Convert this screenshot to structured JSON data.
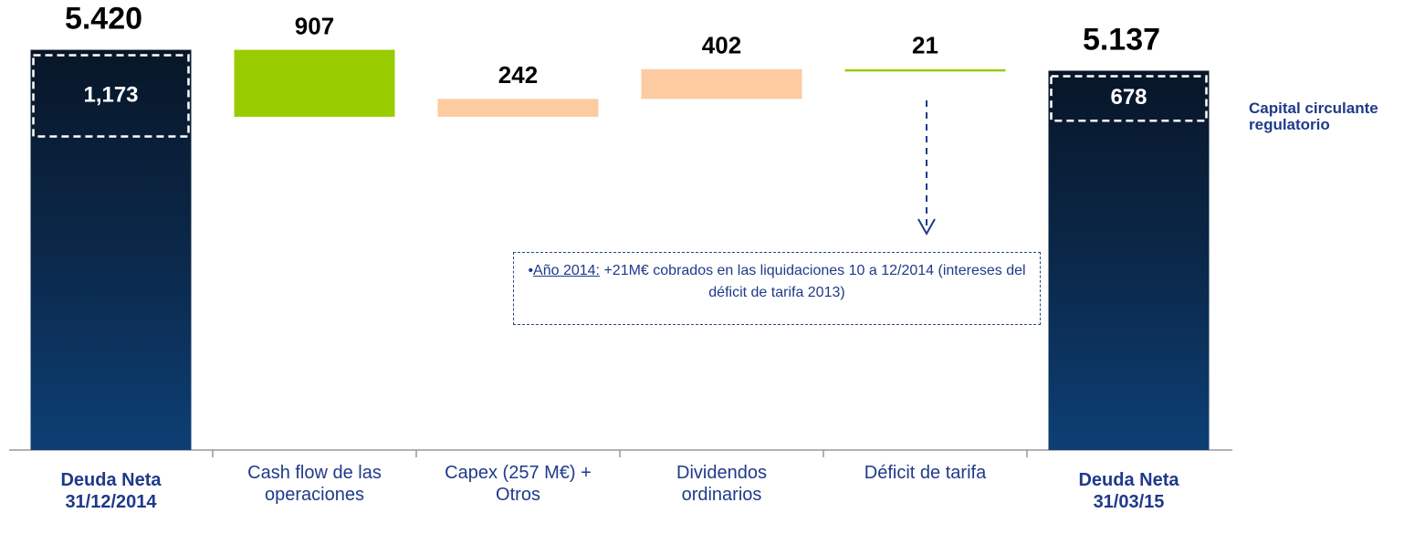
{
  "chart_data": {
    "type": "waterfall",
    "categories": [
      "Deuda Neta 31/12/2014",
      "Cash flow de las operaciones",
      "Capex (257 M€) + Otros",
      "Dividendos ordinarios",
      "Déficit de tarifa",
      "Deuda Neta 31/03/15"
    ],
    "values": [
      5420,
      907,
      242,
      402,
      21,
      5137
    ],
    "value_labels": [
      "5.420",
      "907",
      "242",
      "402",
      "21",
      "5.137"
    ],
    "kinds": [
      "total",
      "decrease",
      "increase",
      "increase",
      "decrease",
      "total"
    ],
    "colors": [
      "#0b2a4d",
      "#99cc00",
      "#fccca0",
      "#fccca0",
      "#99cc00",
      "#0b2a4d"
    ],
    "ylim": [
      0,
      5600
    ],
    "working_capital": {
      "name": "Capital circulante regulatorio",
      "values": [
        1173,
        null,
        null,
        null,
        null,
        678
      ],
      "value_labels": [
        "1,173",
        null,
        null,
        null,
        null,
        "678"
      ]
    },
    "annotation": {
      "lead": "Año 2014:",
      "text": "+21M€ cobrados en las liquidaciones 10 a 12/2014 (intereses del déficit de tarifa 2013)"
    }
  }
}
